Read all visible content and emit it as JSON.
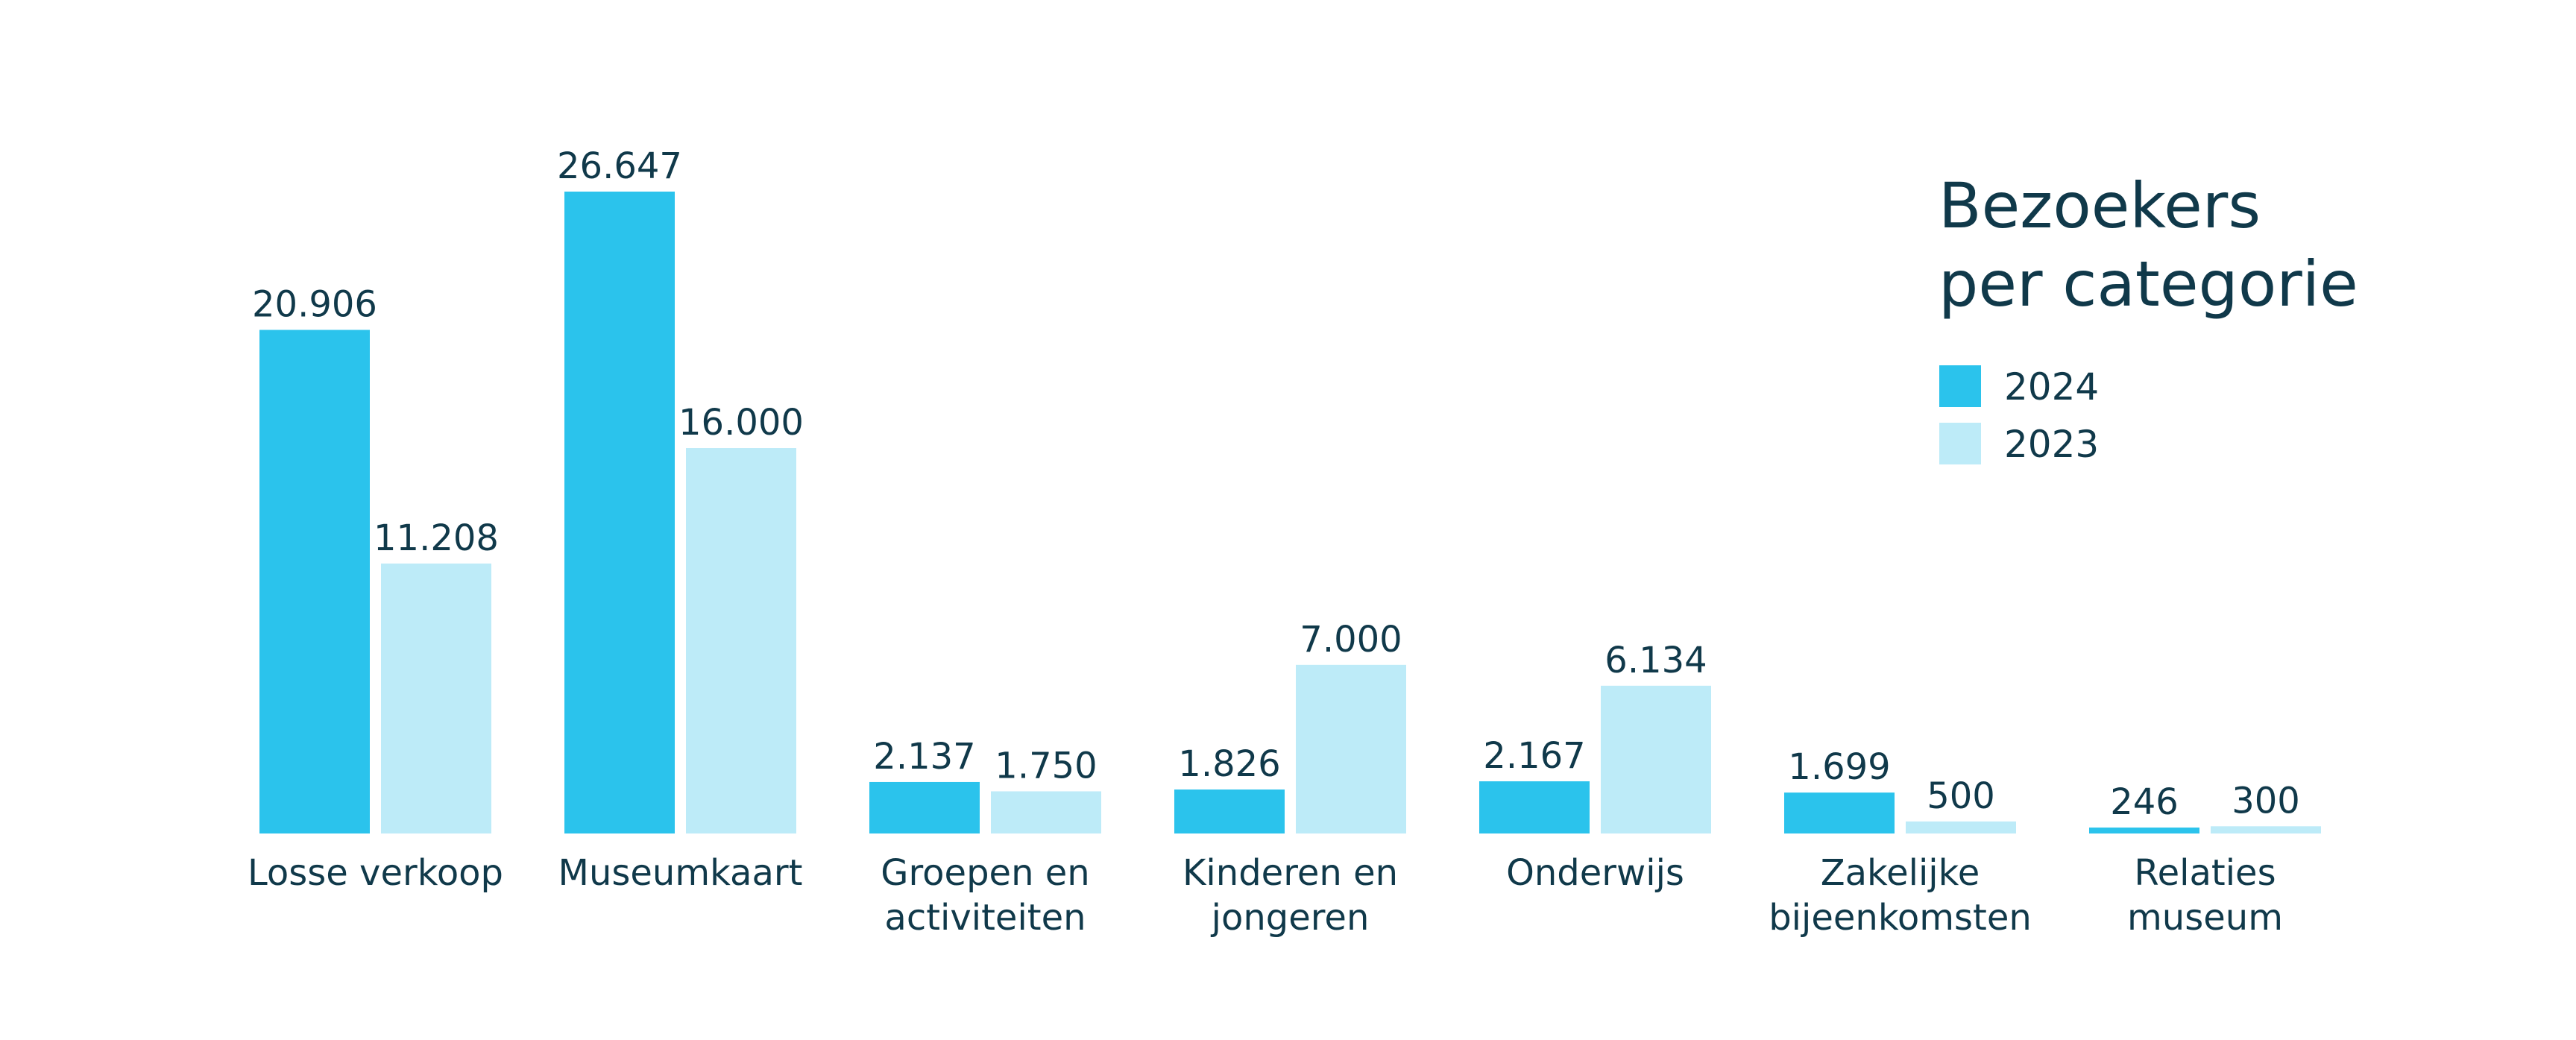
{
  "chart_data": {
    "type": "bar",
    "title": "Bezoekers per categorie",
    "title_lines": [
      "Bezoekers",
      "per categorie"
    ],
    "categories": [
      [
        "Losse verkoop"
      ],
      [
        "Museumkaart"
      ],
      [
        "Groepen en",
        "activiteiten"
      ],
      [
        "Kinderen en",
        "jongeren"
      ],
      [
        "Onderwijs"
      ],
      [
        "Zakelijke",
        "bijeenkomsten"
      ],
      [
        "Relaties",
        "museum"
      ]
    ],
    "series": [
      {
        "name": "2024",
        "color": "#2bc3ec",
        "values": [
          20906,
          26647,
          2137,
          1826,
          2167,
          1699,
          246
        ],
        "labels": [
          "20.906",
          "26.647",
          "2.137",
          "1.826",
          "2.167",
          "1.699",
          "246"
        ]
      },
      {
        "name": "2023",
        "color": "#bdebf8",
        "values": [
          11208,
          16000,
          1750,
          7000,
          6134,
          500,
          300
        ],
        "labels": [
          "11.208",
          "16.000",
          "1.750",
          "7.000",
          "6.134",
          "500",
          "300"
        ]
      }
    ],
    "ylim": [
      0,
      26647
    ],
    "grid": false,
    "legend_position": "top-right"
  }
}
